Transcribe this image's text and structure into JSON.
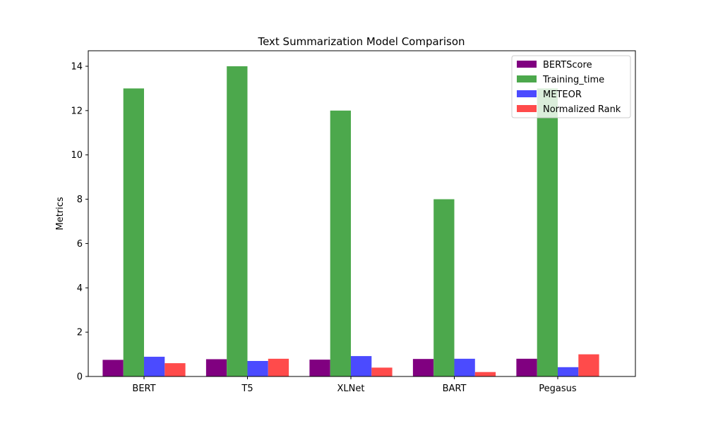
{
  "chart_data": {
    "type": "bar",
    "title": "Text Summarization Model Comparison",
    "xlabel": "",
    "ylabel": "Metrics",
    "categories": [
      "BERT",
      "T5",
      "XLNet",
      "BART",
      "Pegasus"
    ],
    "ylim": [
      0,
      14.7
    ],
    "yticks": [
      0,
      2,
      4,
      6,
      8,
      10,
      12,
      14
    ],
    "grid": false,
    "legend_position": "top-right",
    "series": [
      {
        "name": "BERTScore",
        "color": "#800080",
        "values": [
          0.75,
          0.78,
          0.76,
          0.79,
          0.8
        ]
      },
      {
        "name": "Training_time",
        "color": "#4ca84c",
        "values": [
          13,
          14,
          12,
          8,
          13
        ]
      },
      {
        "name": "METEOR",
        "color": "#4b4bff",
        "values": [
          0.89,
          0.7,
          0.92,
          0.8,
          0.42
        ]
      },
      {
        "name": "Normalized Rank",
        "color": "#ff4b4b",
        "values": [
          0.6,
          0.8,
          0.4,
          0.2,
          1.0
        ]
      }
    ]
  }
}
